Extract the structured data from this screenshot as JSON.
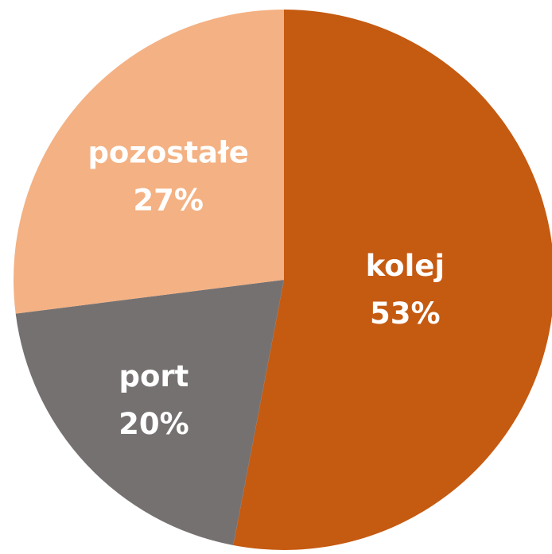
{
  "chart_data": {
    "type": "pie",
    "categories": [
      "kolej",
      "port",
      "pozostałe"
    ],
    "values": [
      53,
      20,
      27
    ],
    "value_labels": [
      "53%",
      "20%",
      "27%"
    ],
    "colors": [
      "#c55a11",
      "#767171",
      "#f4b183"
    ]
  }
}
